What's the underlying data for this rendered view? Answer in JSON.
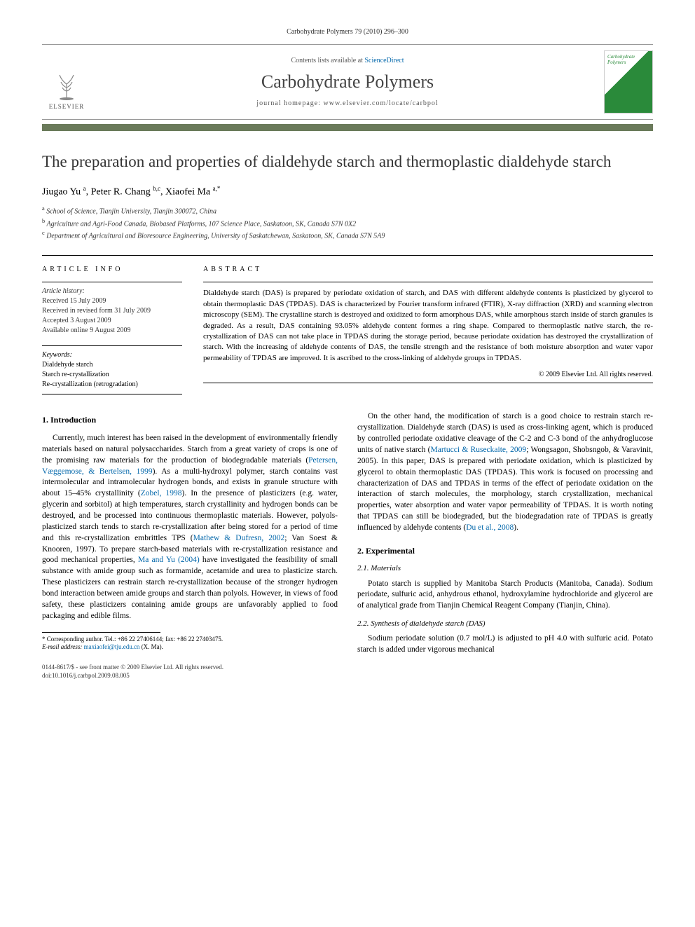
{
  "pageline": "Carbohydrate Polymers 79 (2010) 296–300",
  "header": {
    "contents_prefix": "Contents lists available at ",
    "contents_link": "ScienceDirect",
    "journal": "Carbohydrate Polymers",
    "homepage_prefix": "journal homepage: ",
    "homepage": "www.elsevier.com/locate/carbpol",
    "publisher_logo_text": "ELSEVIER",
    "cover_title": "Carbohydrate Polymers"
  },
  "title": "The preparation and properties of dialdehyde starch and thermoplastic dialdehyde starch",
  "authors_html": "Jiugao Yu <sup>a</sup>, Peter R. Chang <sup>b,c</sup>, Xiaofei Ma <sup>a,*</sup>",
  "affiliations": [
    "a School of Science, Tianjin University, Tianjin 300072, China",
    "b Agriculture and Agri-Food Canada, Biobased Platforms, 107 Science Place, Saskatoon, SK, Canada S7N 0X2",
    "c Department of Agricultural and Bioresource Engineering, University of Saskatchewan, Saskatoon, SK, Canada S7N 5A9"
  ],
  "article_info_head": "ARTICLE INFO",
  "abstract_head": "ABSTRACT",
  "history": {
    "label": "Article history:",
    "received": "Received 15 July 2009",
    "revised": "Received in revised form 31 July 2009",
    "accepted": "Accepted 3 August 2009",
    "online": "Available online 9 August 2009"
  },
  "keywords": {
    "label": "Keywords:",
    "items": [
      "Dialdehyde starch",
      "Starch re-crystallization",
      "Re-crystallization (retrogradation)"
    ]
  },
  "abstract": "Dialdehyde starch (DAS) is prepared by periodate oxidation of starch, and DAS with different aldehyde contents is plasticized by glycerol to obtain thermoplastic DAS (TPDAS). DAS is characterized by Fourier transform infrared (FTIR), X-ray diffraction (XRD) and scanning electron microscopy (SEM). The crystalline starch is destroyed and oxidized to form amorphous DAS, while amorphous starch inside of starch granules is degraded. As a result, DAS containing 93.05% aldehyde content formes a ring shape. Compared to thermoplastic native starch, the re-crystallization of DAS can not take place in TPDAS during the storage period, because periodate oxidation has destroyed the crystallization of starch. With the increasing of aldehyde contents of DAS, the tensile strength and the resistance of both moisture absorption and water vapor permeability of TPDAS are improved. It is ascribed to the cross-linking of aldehyde groups in TPDAS.",
  "copyright": "© 2009 Elsevier Ltd. All rights reserved.",
  "body": {
    "col1": {
      "sec1_head": "1. Introduction",
      "p1a": "Currently, much interest has been raised in the development of environmentally friendly materials based on natural polysaccharides. Starch from a great variety of crops is one of the promising raw materials for the production of biodegradable materials (",
      "c1": "Petersen, Væggemose, & Bertelsen, 1999",
      "p1b": "). As a multi-hydroxyl polymer, starch contains vast intermolecular and intramolecular hydrogen bonds, and exists in granule structure with about 15–45% crystallinity (",
      "c2": "Zobel, 1998",
      "p1c": "). In the presence of plasticizers (e.g. water, glycerin and sorbitol) at high temperatures, starch crystallinity and hydrogen bonds can be destroyed, and be processed into continuous thermoplastic materials. However, polyols-plasticized starch tends to starch re-crystallization after being stored for a period of time and this re-crystallization embrittles TPS (",
      "c3": "Mathew & Dufresn, 2002",
      "p1d": "; Van Soest & Knooren, 1997). To prepare starch-based materials with re-crystallization resistance and good mechanical properties, ",
      "c4": "Ma and Yu (2004)",
      "p1e": " have investigated the feasibility of small substance with amide group such as formamide, acetamide and urea to plasticize starch. These plasticizers can restrain starch re-crystallization because of the stronger hydrogen bond interaction between amide groups and starch than polyols. However, in views of food safety, these plasticizers containing amide groups are unfavorably applied to food packaging and edible films."
    },
    "col2": {
      "p2a": "On the other hand, the modification of starch is a good choice to restrain starch re-crystallization. Dialdehyde starch (DAS) is used as cross-linking agent, which is produced by controlled periodate oxidative cleavage of the C-2 and C-3 bond of the anhydroglucose units of native starch (",
      "c5": "Martucci & Ruseckaite, 2009",
      "p2b": "; Wongsagon, Shobsngob, & Varavinit, 2005). In this paper, DAS is prepared with periodate oxidation, which is plasticized by glycerol to obtain thermoplastic DAS (TPDAS). This work is focused on processing and characterization of DAS and TPDAS in terms of the effect of periodate oxidation on the interaction of starch molecules, the morphology, starch crystallization, mechanical properties, water absorption and water vapor permeability of TPDAS. It is worth noting that TPDAS can still be biodegraded, but the biodegradation rate of TPDAS is greatly influenced by aldehyde contents (",
      "c6": "Du et al., 2008",
      "p2c": ").",
      "sec2_head": "2. Experimental",
      "sub21_head": "2.1. Materials",
      "p3": "Potato starch is supplied by Manitoba Starch Products (Manitoba, Canada). Sodium periodate, sulfuric acid, anhydrous ethanol, hydroxylamine hydrochloride and glycerol are of analytical grade from Tianjin Chemical Reagent Company (Tianjin, China).",
      "sub22_head": "2.2. Synthesis of dialdehyde starch (DAS)",
      "p4": "Sodium periodate solution (0.7 mol/L) is adjusted to pH 4.0 with sulfuric acid. Potato starch is added under vigorous mechanical"
    }
  },
  "footnote": {
    "corr": "* Corresponding author. Tel.: +86 22 27406144; fax: +86 22 27403475.",
    "email_label": "E-mail address:",
    "email": "maxiaofei@tju.edu.cn",
    "email_suffix": " (X. Ma)."
  },
  "footer": {
    "line1": "0144-8617/$ - see front matter © 2009 Elsevier Ltd. All rights reserved.",
    "line2": "doi:10.1016/j.carbpol.2009.08.005"
  },
  "colors": {
    "accent_bar": "#6a7a5a",
    "link": "#0066aa",
    "cover_green": "#2a8a3a"
  }
}
